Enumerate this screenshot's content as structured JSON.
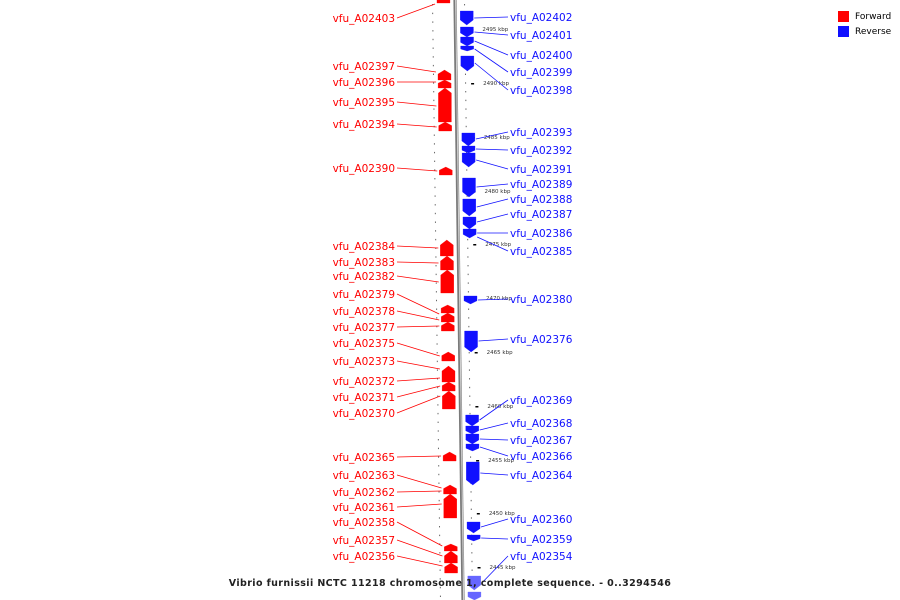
{
  "legend": {
    "forward_label": "Forward",
    "reverse_label": "Reverse",
    "forward_color": "#ff0000",
    "reverse_color": "#1010ff"
  },
  "caption": "Vibrio furnissii NCTC 11218 chromosome 1, complete sequence. - 0..3294546",
  "kbp_ticks": [
    "2495 kbp",
    "2490 kbp",
    "2485 kbp",
    "2480 kbp",
    "2475 kbp",
    "2470 kbp",
    "2465 kbp",
    "2460 kbp",
    "2455 kbp",
    "2450 kbp",
    "2445 kbp"
  ],
  "forward_genes": [
    "vfu_A02403",
    "vfu_A02397",
    "vfu_A02396",
    "vfu_A02395",
    "vfu_A02394",
    "vfu_A02390",
    "vfu_A02384",
    "vfu_A02383",
    "vfu_A02382",
    "vfu_A02379",
    "vfu_A02378",
    "vfu_A02377",
    "vfu_A02375",
    "vfu_A02373",
    "vfu_A02372",
    "vfu_A02371",
    "vfu_A02370",
    "vfu_A02365",
    "vfu_A02363",
    "vfu_A02362",
    "vfu_A02361",
    "vfu_A02358",
    "vfu_A02357",
    "vfu_A02356"
  ],
  "reverse_genes": [
    "vfu_A02402",
    "vfu_A02401",
    "vfu_A02400",
    "vfu_A02399",
    "vfu_A02398",
    "vfu_A02393",
    "vfu_A02392",
    "vfu_A02391",
    "vfu_A02389",
    "vfu_A02388",
    "vfu_A02387",
    "vfu_A02386",
    "vfu_A02385",
    "vfu_A02380",
    "vfu_A02376",
    "vfu_A02369",
    "vfu_A02368",
    "vfu_A02367",
    "vfu_A02366",
    "vfu_A02364",
    "vfu_A02360",
    "vfu_A02359",
    "vfu_A02354"
  ]
}
